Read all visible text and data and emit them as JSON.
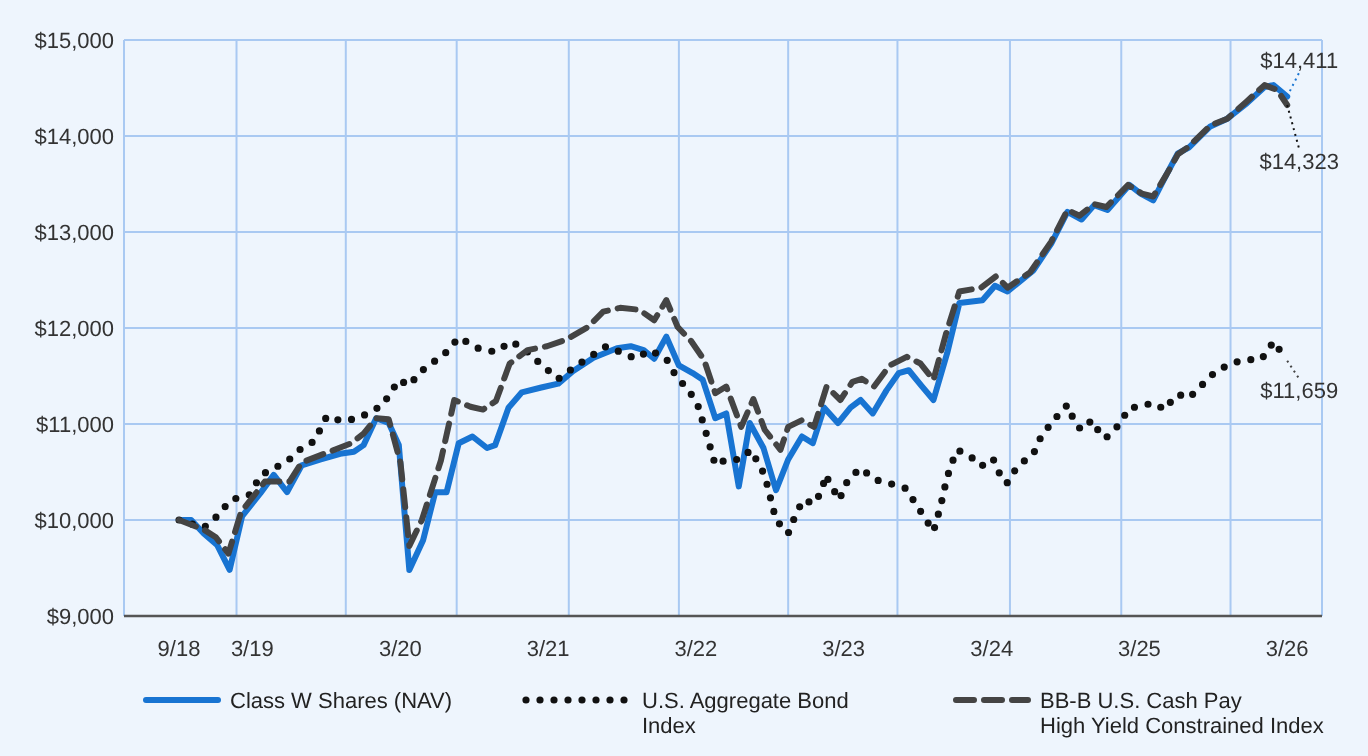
{
  "chart_data": {
    "type": "line",
    "xlim": [
      "2018-04-18",
      "2026-05-26"
    ],
    "ylim": [
      9000,
      15000
    ],
    "xticks": [
      {
        "value": "2018-09",
        "label": "9/18"
      },
      {
        "value": "2019-03",
        "label": "3/19"
      },
      {
        "value": "2020-03",
        "label": "3/20"
      },
      {
        "value": "2021-03",
        "label": "3/21"
      },
      {
        "value": "2022-03",
        "label": "3/22"
      },
      {
        "value": "2023-03",
        "label": "3/23"
      },
      {
        "value": "2024-03",
        "label": "3/24"
      },
      {
        "value": "2025-03",
        "label": "3/25"
      },
      {
        "value": "2026-03",
        "label": "3/26"
      },
      {
        "value": "2019-01-21",
        "label": null
      },
      {
        "value": "2019-10-18",
        "label": null
      },
      {
        "value": "2020-07-18",
        "label": null
      },
      {
        "value": "2021-04-21",
        "label": null
      },
      {
        "value": "2022-01-18",
        "label": null
      },
      {
        "value": "2022-10-15",
        "label": null
      },
      {
        "value": "2023-07-12",
        "label": null
      },
      {
        "value": "2024-04-15",
        "label": null
      },
      {
        "value": "2025-01-15",
        "label": null
      },
      {
        "value": "2025-10-12",
        "label": null
      }
    ],
    "yticks": [
      {
        "value": 9000,
        "label": "$9,000"
      },
      {
        "value": 10000,
        "label": "$10,000"
      },
      {
        "value": 11000,
        "label": "$11,000"
      },
      {
        "value": 12000,
        "label": "$12,000"
      },
      {
        "value": 13000,
        "label": "$13,000"
      },
      {
        "value": 14000,
        "label": "$14,000"
      },
      {
        "value": 15000,
        "label": "$15,000"
      }
    ],
    "grid": true,
    "legend": "bottom",
    "series": [
      {
        "name": "Class W Shares (NAV)",
        "color": "#1874d2",
        "line_style": "solid",
        "x": [
          "2018-09-01",
          "2018-10-01",
          "2018-11-01",
          "2018-12-04",
          "2019-01-04",
          "2019-02-04",
          "2019-03-21",
          "2019-04-23",
          "2019-05-26",
          "2019-07-01",
          "2019-08-15",
          "2019-10-04",
          "2019-11-07",
          "2019-12-01",
          "2020-01-01",
          "2020-02-01",
          "2020-02-26",
          "2020-03-23",
          "2020-04-26",
          "2020-05-26",
          "2020-06-23",
          "2020-07-23",
          "2020-08-26",
          "2020-10-01",
          "2020-10-21",
          "2020-11-23",
          "2020-12-26",
          "2021-02-12",
          "2021-03-26",
          "2021-05-01",
          "2021-06-21",
          "2021-08-18",
          "2021-09-21",
          "2021-10-23",
          "2021-11-18",
          "2021-12-18",
          "2022-01-18",
          "2022-02-21",
          "2022-03-18",
          "2022-04-18",
          "2022-05-15",
          "2022-06-15",
          "2022-07-12",
          "2022-08-15",
          "2022-09-15",
          "2022-10-15",
          "2022-11-18",
          "2022-12-15",
          "2023-01-12",
          "2023-02-15",
          "2023-03-18",
          "2023-04-12",
          "2023-05-12",
          "2023-06-15",
          "2023-07-15",
          "2023-08-09",
          "2023-09-09",
          "2023-10-09",
          "2023-11-12",
          "2023-12-12",
          "2024-02-07",
          "2024-03-09",
          "2024-04-09",
          "2024-06-12",
          "2024-07-26",
          "2024-09-04",
          "2024-10-09",
          "2024-11-09",
          "2024-12-12",
          "2025-02-04",
          "2025-03-04",
          "2025-04-04",
          "2025-05-07",
          "2025-06-04",
          "2025-07-01",
          "2025-08-23",
          "2025-10-04",
          "2025-11-21",
          "2026-01-04",
          "2026-01-26",
          "2026-03-01"
        ],
        "values": [
          10000,
          10000,
          9860,
          9740,
          9480,
          10040,
          10280,
          10470,
          10290,
          10570,
          10630,
          10690,
          10710,
          10780,
          11060,
          11010,
          10780,
          9480,
          9790,
          10290,
          10290,
          10800,
          10870,
          10750,
          10780,
          11170,
          11330,
          11380,
          11420,
          11550,
          11690,
          11790,
          11810,
          11770,
          11680,
          11910,
          11610,
          11530,
          11460,
          11060,
          11110,
          10350,
          11010,
          10750,
          10310,
          10630,
          10870,
          10800,
          11170,
          11010,
          11170,
          11250,
          11110,
          11350,
          11530,
          11560,
          11400,
          11250,
          11740,
          12260,
          12290,
          12440,
          12380,
          12600,
          12880,
          13210,
          13130,
          13280,
          13230,
          13490,
          13400,
          13330,
          13600,
          13820,
          13880,
          14100,
          14180,
          14340,
          14510,
          14530,
          14411
        ]
      },
      {
        "name": "U.S. Aggregate Bond Index",
        "color": "#111111",
        "line_style": "dotted",
        "x": [
          "2018-09-01",
          "2018-11-01",
          "2018-12-04",
          "2019-01-07",
          "2019-02-21",
          "2019-03-23",
          "2019-05-26",
          "2019-07-01",
          "2019-08-01",
          "2019-09-01",
          "2019-10-09",
          "2019-11-18",
          "2020-01-15",
          "2020-02-07",
          "2020-02-26",
          "2020-03-23",
          "2020-04-18",
          "2020-05-23",
          "2020-06-23",
          "2020-07-23",
          "2020-09-09",
          "2020-10-21",
          "2020-12-01",
          "2021-01-09",
          "2021-02-09",
          "2021-03-26",
          "2021-05-07",
          "2021-07-23",
          "2021-08-26",
          "2021-10-04",
          "2021-11-07",
          "2021-12-18",
          "2022-01-12",
          "2022-02-12",
          "2022-03-07",
          "2022-04-04",
          "2022-04-18",
          "2022-05-15",
          "2022-06-18",
          "2022-07-15",
          "2022-08-18",
          "2022-09-15",
          "2022-10-15",
          "2022-11-01",
          "2022-11-21",
          "2022-12-18",
          "2023-01-07",
          "2023-01-15",
          "2023-02-18",
          "2023-03-12",
          "2023-04-12",
          "2023-05-18",
          "2023-06-23",
          "2023-08-01",
          "2023-08-23",
          "2023-09-15",
          "2023-10-09",
          "2023-10-21",
          "2023-11-01",
          "2023-11-09",
          "2023-11-21",
          "2023-12-07",
          "2024-01-09",
          "2024-02-04",
          "2024-03-04",
          "2024-03-18",
          "2024-04-07",
          "2024-05-04",
          "2024-06-12",
          "2024-07-01",
          "2024-08-01",
          "2024-09-04",
          "2024-09-18",
          "2024-10-07",
          "2024-11-04",
          "2024-11-18",
          "2024-12-07",
          "2025-01-09",
          "2025-02-04",
          "2025-03-04",
          "2025-04-01",
          "2025-05-04",
          "2025-05-15",
          "2025-06-04",
          "2025-07-01",
          "2025-08-01",
          "2025-09-01",
          "2025-10-07",
          "2025-11-15",
          "2025-12-26",
          "2026-01-12",
          "2026-01-26",
          "2026-02-12",
          "2026-03-01"
        ],
        "values": [
          10000,
          9920,
          10040,
          10210,
          10260,
          10470,
          10610,
          10750,
          10820,
          11080,
          11030,
          11060,
          11190,
          11330,
          11460,
          11400,
          11540,
          11650,
          11750,
          11900,
          11790,
          11750,
          11860,
          11750,
          11630,
          11470,
          11600,
          11810,
          11750,
          11680,
          11770,
          11680,
          11490,
          11350,
          11180,
          10780,
          10570,
          10630,
          10630,
          10730,
          10470,
          10000,
          9860,
          10040,
          10210,
          10170,
          10310,
          10470,
          10210,
          10420,
          10540,
          10420,
          10380,
          10330,
          10190,
          10040,
          9880,
          10060,
          10240,
          10400,
          10570,
          10730,
          10660,
          10560,
          10640,
          10500,
          10380,
          10560,
          10690,
          10870,
          11040,
          11200,
          11060,
          10940,
          11040,
          10940,
          10850,
          10990,
          11170,
          11180,
          11220,
          11150,
          11220,
          11310,
          11270,
          11400,
          11530,
          11620,
          11670,
          11670,
          11760,
          11860,
          11760,
          11659
        ]
      },
      {
        "name": "BB-B U.S. Cash Pay High Yield Constrained Index",
        "color": "#444444",
        "line_style": "dashed",
        "x": [
          "2018-09-01",
          "2018-11-01",
          "2018-12-01",
          "2019-01-01",
          "2019-02-01",
          "2019-04-01",
          "2019-06-01",
          "2019-07-01",
          "2019-09-01",
          "2019-11-01",
          "2019-12-01",
          "2020-01-01",
          "2020-02-01",
          "2020-03-01",
          "2020-03-23",
          "2020-04-23",
          "2020-06-09",
          "2020-07-12",
          "2020-08-21",
          "2020-09-21",
          "2020-10-23",
          "2020-11-26",
          "2021-01-09",
          "2021-02-26",
          "2021-04-15",
          "2021-06-07",
          "2021-07-15",
          "2021-08-26",
          "2021-10-12",
          "2021-11-18",
          "2021-12-18",
          "2022-01-15",
          "2022-02-18",
          "2022-03-21",
          "2022-04-18",
          "2022-05-15",
          "2022-06-21",
          "2022-07-21",
          "2022-08-18",
          "2022-09-26",
          "2022-10-15",
          "2022-11-18",
          "2022-12-18",
          "2023-01-18",
          "2023-02-21",
          "2023-03-23",
          "2023-04-15",
          "2023-05-15",
          "2023-06-23",
          "2023-08-04",
          "2023-09-07",
          "2023-10-09",
          "2023-11-09",
          "2023-12-12",
          "2024-02-04",
          "2024-03-12",
          "2024-04-09",
          "2024-06-04",
          "2024-07-26",
          "2024-09-04",
          "2024-10-04",
          "2024-11-09",
          "2024-12-09",
          "2025-02-01",
          "2025-03-07",
          "2025-04-04",
          "2025-05-07",
          "2025-06-04",
          "2025-07-01",
          "2025-08-23",
          "2025-10-04",
          "2025-11-21",
          "2026-01-04",
          "2026-02-04",
          "2026-03-01"
        ],
        "values": [
          10000,
          9900,
          9820,
          9650,
          10080,
          10400,
          10400,
          10600,
          10700,
          10800,
          10900,
          11060,
          11050,
          10600,
          9730,
          10000,
          10620,
          11250,
          11180,
          11150,
          11240,
          11630,
          11770,
          11810,
          11880,
          12010,
          12170,
          12210,
          12190,
          12080,
          12290,
          12010,
          11860,
          11670,
          11320,
          11390,
          10970,
          11260,
          10940,
          10730,
          10970,
          11040,
          10970,
          11390,
          11250,
          11440,
          11470,
          11390,
          11610,
          11700,
          11630,
          11460,
          11940,
          12380,
          12420,
          12540,
          12420,
          12580,
          12900,
          13230,
          13170,
          13290,
          13260,
          13490,
          13400,
          13370,
          13600,
          13810,
          13890,
          14110,
          14180,
          14360,
          14530,
          14480,
          14323
        ]
      }
    ],
    "annotations": [
      {
        "text": "$14,411",
        "x": "2026-03-01",
        "y": 14411
      },
      {
        "text": "$14,323",
        "x": "2026-03-01",
        "y": 14323
      },
      {
        "text": "$11,659",
        "x": "2026-03-01",
        "y": 11659
      }
    ]
  }
}
